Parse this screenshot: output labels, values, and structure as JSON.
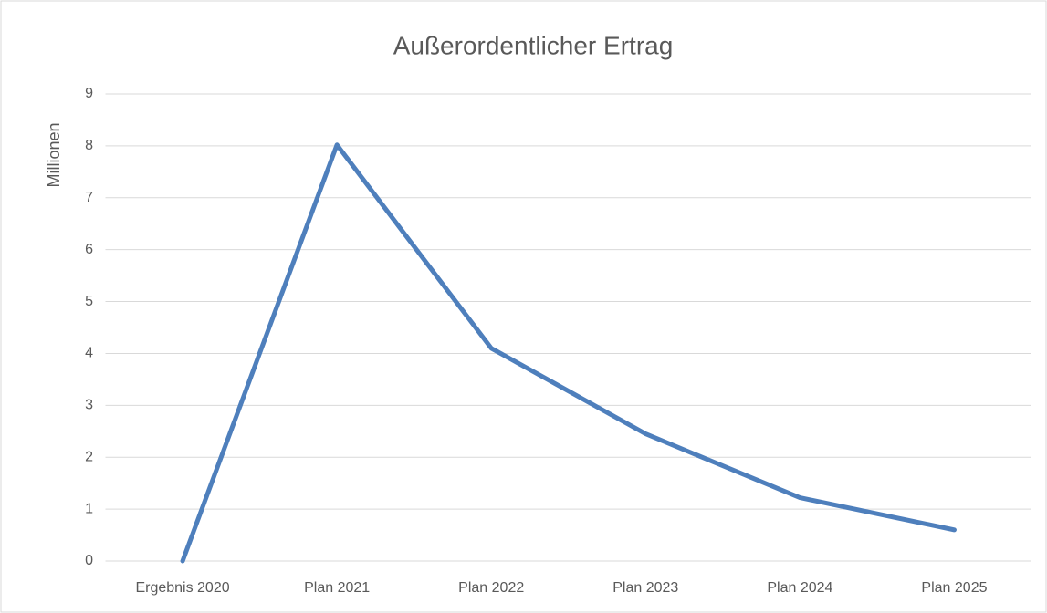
{
  "chart_data": {
    "type": "line",
    "title": "Außerordentlicher Ertrag",
    "y_label": "Millionen",
    "categories": [
      "Ergebnis 2020",
      "Plan 2021",
      "Plan 2022",
      "Plan 2023",
      "Plan 2024",
      "Plan 2025"
    ],
    "values": [
      0,
      8.02,
      4.1,
      2.45,
      1.22,
      0.6
    ],
    "color": "#4e7fbc",
    "ylim": [
      0,
      9
    ],
    "yticks": [
      0,
      1,
      2,
      3,
      4,
      5,
      6,
      7,
      8,
      9
    ],
    "grid": true
  }
}
